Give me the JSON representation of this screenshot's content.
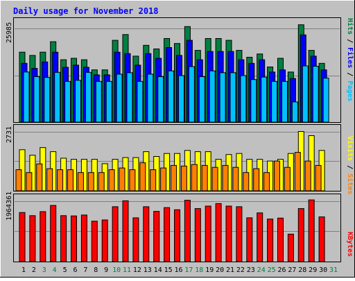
{
  "chart_data": {
    "type": "bar",
    "title": "Daily usage for November 2018",
    "categories": [
      "1",
      "2",
      "3",
      "4",
      "5",
      "6",
      "7",
      "8",
      "9",
      "10",
      "11",
      "12",
      "13",
      "14",
      "15",
      "16",
      "17",
      "18",
      "19",
      "20",
      "21",
      "22",
      "23",
      "24",
      "25",
      "26",
      "27",
      "28",
      "29",
      "30",
      "31"
    ],
    "weekend_days": [
      "3",
      "4",
      "10",
      "11",
      "17",
      "18",
      "24",
      "25",
      "31"
    ],
    "panels": [
      {
        "id": "hits",
        "ymax_label": "25985",
        "ymax": 25985,
        "axis_label": {
          "pages": "Pages",
          "files": "Files",
          "hits": "Hits",
          "sep": " / "
        },
        "series": [
          {
            "name": "Hits",
            "color": "#008040",
            "values": [
              19400,
              18500,
              19400,
              22300,
              17300,
              17700,
              17300,
              14500,
              14500,
              22700,
              24300,
              18300,
              21300,
              20300,
              23200,
              21800,
              26500,
              19900,
              23200,
              23200,
              22700,
              19900,
              18000,
              18900,
              15300,
              17700,
              13900,
              27000,
              19900,
              16300,
              null
            ]
          },
          {
            "name": "Files",
            "color": "#0000ff",
            "values": [
              16300,
              14900,
              16700,
              19400,
              15200,
              15800,
              15200,
              13100,
              13100,
              19400,
              19000,
              15800,
              19000,
              17700,
              20700,
              18500,
              22700,
              17300,
              19600,
              19600,
              19600,
              17300,
              16300,
              17300,
              13900,
              14500,
              12100,
              24200,
              18300,
              14500,
              null
            ]
          },
          {
            "name": "Pages",
            "color": "#00c0ff",
            "values": [
              13900,
              12600,
              12400,
              13800,
              11300,
              11600,
              13800,
              11300,
              11300,
              13300,
              13700,
              11300,
              13300,
              12600,
              14200,
              12900,
              15400,
              12600,
              14200,
              13700,
              13700,
              12900,
              11800,
              12500,
              11300,
              11300,
              5600,
              15600,
              15500,
              12200,
              null
            ]
          }
        ]
      },
      {
        "id": "visits",
        "ymax_label": "2731",
        "ymax": 2731,
        "axis_label": {
          "sites": "Sites",
          "visits": "Visits",
          "sep": " / "
        },
        "series": [
          {
            "name": "Visits",
            "color": "#ffff00",
            "values": [
              1890,
              1640,
              1990,
              1800,
              1500,
              1450,
              1450,
              1450,
              1250,
              1450,
              1530,
              1530,
              1800,
              1580,
              1720,
              1720,
              1860,
              1800,
              1800,
              1450,
              1670,
              1720,
              1450,
              1450,
              1370,
              1450,
              1720,
              2731,
              2540,
              1860,
              null
            ]
          },
          {
            "name": "Sites",
            "color": "#ff8000",
            "values": [
              970,
              840,
              1240,
              1020,
              970,
              970,
              840,
              840,
              840,
              970,
              1050,
              970,
              1290,
              970,
              1050,
              1170,
              1140,
              1210,
              1170,
              1080,
              1170,
              1080,
              840,
              1020,
              840,
              1370,
              1080,
              1770,
              1370,
              1170,
              null
            ]
          }
        ]
      },
      {
        "id": "kbytes",
        "ymax_label": "1964361",
        "ymax": 1964361,
        "axis_label": {
          "kbytes": "KBytes"
        },
        "series": [
          {
            "name": "KBytes",
            "color": "#ff0000",
            "values": [
              1590000,
              1490000,
              1620000,
              1820000,
              1490000,
              1480000,
              1510000,
              1310000,
              1350000,
              1780000,
              1970000,
              1420000,
              1780000,
              1630000,
              1750000,
              1680000,
              1990000,
              1720000,
              1800000,
              1880000,
              1800000,
              1780000,
              1420000,
              1580000,
              1380000,
              1410000,
              890000,
              1720000,
              2000000,
              1450000,
              null
            ]
          }
        ]
      }
    ]
  },
  "colors": {
    "background": "#c0c0c0",
    "plot_bg": "#c0c0c0",
    "title": "#0000ff",
    "weekday_label": "#000000",
    "weekend_label": "#008040",
    "grid": "#808080",
    "pages_label": "#00c0ff",
    "files_label": "#0000ff",
    "hits_label": "#008040",
    "sites_label": "#ff8000",
    "visits_label": "#ffff00",
    "kbytes_label": "#ff0000"
  }
}
